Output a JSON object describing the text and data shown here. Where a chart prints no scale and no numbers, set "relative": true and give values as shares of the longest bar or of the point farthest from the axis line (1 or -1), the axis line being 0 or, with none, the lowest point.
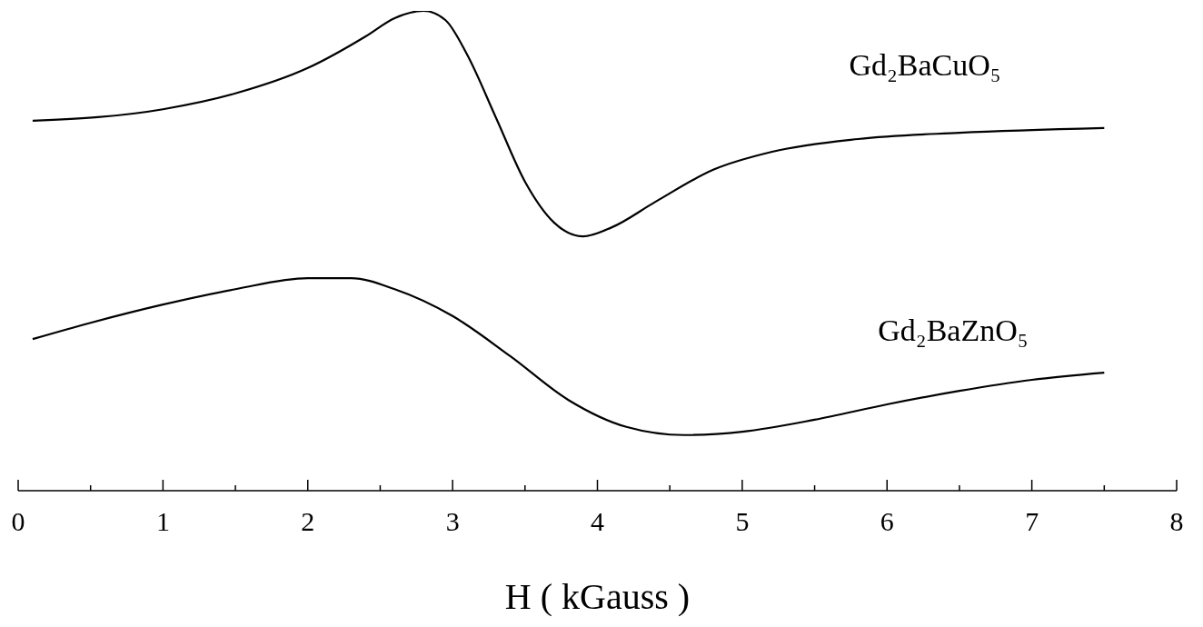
{
  "chart_data": {
    "type": "line",
    "relative": true,
    "xlabel": "H ( kGauss )",
    "xlim": [
      0,
      8
    ],
    "xticks": [
      0,
      {
        "value": 0.5,
        "label": null
      },
      1,
      {
        "value": 1.5,
        "label": null
      },
      2,
      {
        "value": 2.5,
        "label": null
      },
      3,
      {
        "value": 3.5,
        "label": null
      },
      4,
      {
        "value": 4.5,
        "label": null
      },
      5,
      {
        "value": 5.5,
        "label": null
      },
      6,
      {
        "value": 6.5,
        "label": null
      },
      7,
      {
        "value": 7.5,
        "label": null
      },
      8
    ],
    "legend": false,
    "grid": false,
    "marker": "none",
    "line_style": "solid",
    "series": [
      {
        "name": "Gd₂BaCuO₅",
        "color": "#000000",
        "x": [
          0.1,
          1,
          1.5,
          2,
          2.4,
          2.6,
          2.8,
          2.95,
          3.1,
          3.3,
          3.5,
          3.7,
          3.9,
          4.1,
          4.4,
          4.8,
          5.2,
          5.8,
          6.5,
          7.5
        ],
        "values": [
          0.771,
          0.795,
          0.828,
          0.881,
          0.947,
          0.985,
          1,
          0.981,
          0.909,
          0.777,
          0.644,
          0.559,
          0.53,
          0.549,
          0.602,
          0.669,
          0.706,
          0.733,
          0.746,
          0.756
        ]
      },
      {
        "name": "Gd₂BaZnO₅",
        "color": "#000000",
        "x": [
          0.1,
          0.5,
          1,
          1.5,
          2,
          2.3,
          2.6,
          3,
          3.4,
          3.8,
          4.2,
          4.6,
          5,
          5.5,
          6,
          6.5,
          7,
          7.5
        ],
        "values": [
          0.316,
          0.35,
          0.388,
          0.42,
          0.443,
          0.443,
          0.42,
          0.364,
          0.28,
          0.189,
          0.133,
          0.116,
          0.123,
          0.148,
          0.18,
          0.208,
          0.231,
          0.246
        ]
      }
    ]
  }
}
